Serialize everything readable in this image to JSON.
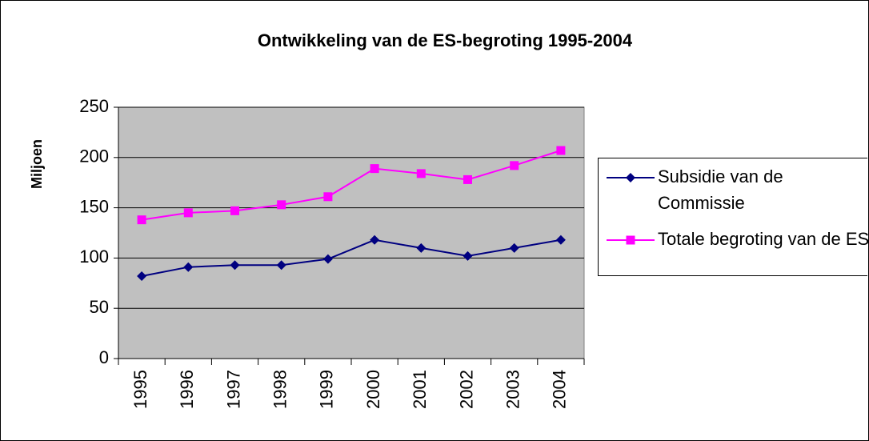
{
  "chart_data": {
    "type": "line",
    "title": "Ontwikkeling van de ES-begroting 1995-2004",
    "y_label": "Miljoen",
    "categories": [
      "1995",
      "1996",
      "1997",
      "1998",
      "1999",
      "2000",
      "2001",
      "2002",
      "2003",
      "2004"
    ],
    "series": [
      {
        "name": "Subsidie van de Commissie",
        "color": "#000080",
        "marker": "diamond",
        "values": [
          82,
          91,
          93,
          93,
          99,
          118,
          110,
          102,
          110,
          118
        ]
      },
      {
        "name": "Totale begroting van de ES",
        "color": "#ff00ff",
        "marker": "square",
        "values": [
          138,
          145,
          147,
          153,
          161,
          189,
          184,
          178,
          192,
          207
        ]
      }
    ],
    "ylim": [
      0,
      250
    ],
    "yticks": [
      0,
      50,
      100,
      150,
      200,
      250
    ],
    "grid": true,
    "legend": "right"
  }
}
